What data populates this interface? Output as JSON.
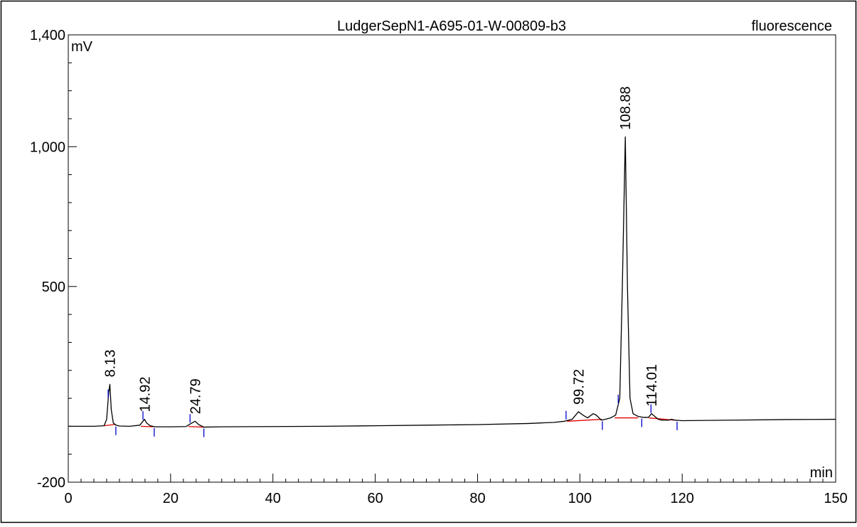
{
  "chart_data": {
    "type": "line",
    "title": "LudgerSepN1-A695-01-W-00809-b3",
    "detector": "fluorescence",
    "xlabel": "min",
    "ylabel": "mV",
    "xlim": [
      0,
      150
    ],
    "ylim": [
      -200,
      1400
    ],
    "x_ticks": [
      0,
      20,
      40,
      60,
      80,
      100,
      120,
      150
    ],
    "x_tick_labels": [
      "0",
      "20",
      "40",
      "60",
      "80",
      "100",
      "120",
      "150"
    ],
    "y_ticks": [
      -200,
      500,
      1000,
      1400
    ],
    "y_tick_labels": [
      "-200",
      "500",
      "1,000",
      "1,400"
    ],
    "grid": false,
    "colors": {
      "trace": "#000000",
      "baseline": "#e00000",
      "integration_marks": "#0000cc"
    },
    "series": [
      {
        "x": [
          0,
          5,
          7,
          7.5,
          7.9,
          8.13,
          8.4,
          8.8,
          9.3,
          10,
          12,
          14,
          14.6,
          14.92,
          15.3,
          16,
          17,
          20,
          23,
          24,
          24.79,
          25.5,
          26.5,
          30,
          40,
          50,
          60,
          70,
          80,
          90,
          95,
          97,
          98.5,
          99.72,
          100.6,
          101.5,
          102.6,
          103.2,
          104.2,
          105,
          106,
          107,
          107.8,
          108.3,
          108.88,
          109.3,
          109.8,
          110.4,
          111.3,
          112.3,
          113.4,
          114.01,
          114.6,
          115.3,
          116,
          117.4,
          117.9,
          118.6,
          120,
          130,
          140,
          150
        ],
        "y": [
          0,
          0,
          2,
          25,
          120,
          150,
          60,
          12,
          4,
          1,
          0,
          4,
          18,
          25,
          12,
          2,
          -2,
          -2,
          -1,
          10,
          18,
          6,
          -3,
          -2,
          -1,
          0,
          2,
          4,
          6,
          10,
          14,
          18,
          25,
          52,
          40,
          30,
          45,
          40,
          22,
          25,
          30,
          40,
          100,
          500,
          1035,
          500,
          100,
          45,
          36,
          32,
          32,
          45,
          36,
          25,
          22,
          22,
          25,
          22,
          20,
          22,
          24,
          25
        ]
      }
    ],
    "baseline_segments": [
      {
        "x": [
          7,
          9.3
        ],
        "y": [
          2,
          7
        ]
      },
      {
        "x": [
          14.2,
          16.6
        ],
        "y": [
          0,
          -2
        ]
      },
      {
        "x": [
          23.5,
          26.5
        ],
        "y": [
          -1,
          -3
        ]
      },
      {
        "x": [
          97.5,
          104.3
        ],
        "y": [
          18,
          25
        ]
      },
      {
        "x": [
          106.8,
          111.4
        ],
        "y": [
          30,
          30
        ]
      },
      {
        "x": [
          113.5,
          119
        ],
        "y": [
          30,
          21
        ]
      }
    ],
    "integration_marks": [
      7.8,
      9.3,
      14.6,
      16.8,
      23.8,
      26.5,
      97.3,
      104.4,
      107.5,
      112.1,
      113.9,
      119.0
    ],
    "peaks": [
      {
        "rt": 8.13,
        "label": "8.13",
        "height": 150
      },
      {
        "rt": 14.92,
        "label": "14.92",
        "height": 25
      },
      {
        "rt": 24.79,
        "label": "24.79",
        "height": 18
      },
      {
        "rt": 99.72,
        "label": "99.72",
        "height": 52
      },
      {
        "rt": 108.88,
        "label": "108.88",
        "height": 1035
      },
      {
        "rt": 114.01,
        "label": "114.01",
        "height": 45
      }
    ]
  }
}
